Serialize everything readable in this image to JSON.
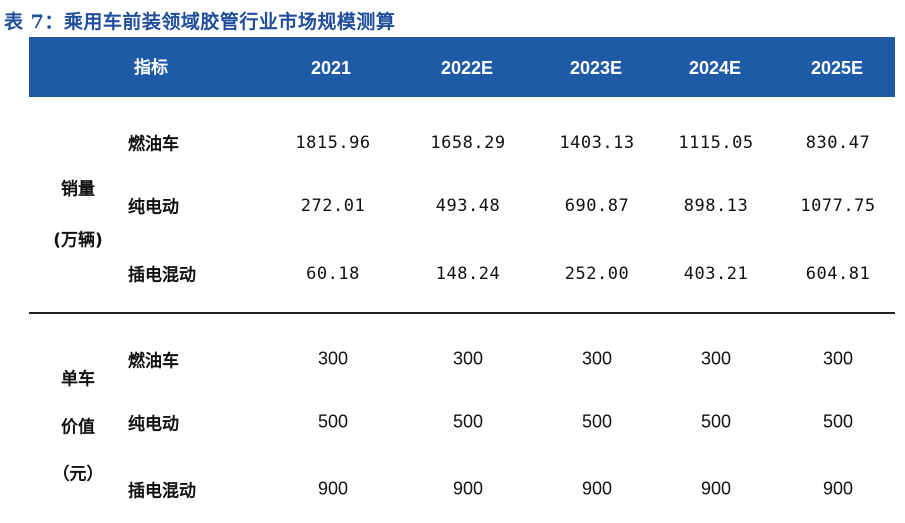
{
  "caption": "表 7：乘用车前装领域胶管行业市场规模测算",
  "header": {
    "label": "指标",
    "years": [
      "2021",
      "2022E",
      "2023E",
      "2024E",
      "2025E"
    ]
  },
  "sales": {
    "group_label_line1": "销量",
    "group_label_line2": "(万辆)",
    "rows": [
      {
        "label": "燃油车",
        "values": [
          "1815.96",
          "1658.29",
          "1403.13",
          "1115.05",
          "830.47"
        ]
      },
      {
        "label": "纯电动",
        "values": [
          "272.01",
          "493.48",
          "690.87",
          "898.13",
          "1077.75"
        ]
      },
      {
        "label": "插电混动",
        "values": [
          "60.18",
          "148.24",
          "252.00",
          "403.21",
          "604.81"
        ]
      }
    ]
  },
  "price": {
    "group_label_line1": "单车",
    "group_label_line2": "价值",
    "group_label_line3": "（元）",
    "rows": [
      {
        "label": "燃油车",
        "values": [
          "300",
          "300",
          "300",
          "300",
          "300"
        ]
      },
      {
        "label": "纯电动",
        "values": [
          "500",
          "500",
          "500",
          "500",
          "500"
        ]
      },
      {
        "label": "插电混动",
        "values": [
          "900",
          "900",
          "900",
          "900",
          "900"
        ]
      }
    ]
  },
  "colors": {
    "header_bg": "#1f5aa6",
    "caption": "#1f4e9a"
  }
}
